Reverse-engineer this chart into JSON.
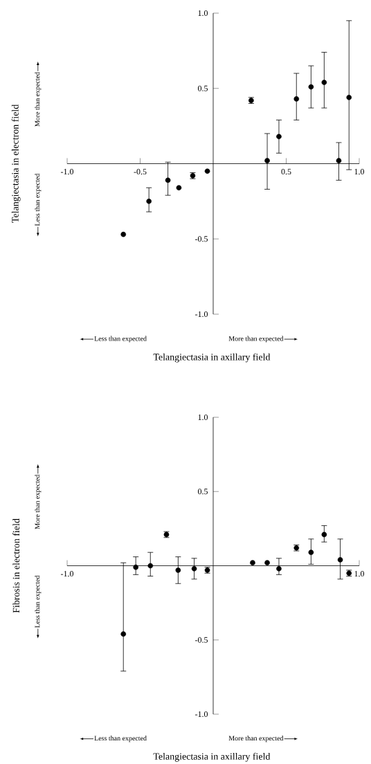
{
  "chart_data": [
    {
      "type": "scatter",
      "ylabel": "Telangiectasia in electron field",
      "xlabel": "Telangiectasia in axillary field",
      "annotations": [
        "More than expected",
        "Less than expected",
        "Less than expected",
        "More than expected"
      ],
      "xlim": [
        -1.0,
        1.0
      ],
      "ylim": [
        -1.0,
        1.0
      ],
      "xticks": [
        {
          "value": -1.0,
          "label": "-1.0"
        },
        {
          "value": -0.5,
          "label": "-0.5"
        },
        {
          "value": 0.5,
          "label": "0.5"
        },
        {
          "value": 1.0,
          "label": "1.0"
        }
      ],
      "yticks": [
        {
          "value": 1.0,
          "label": "1.0"
        },
        {
          "value": 0.5,
          "label": "0.5"
        },
        {
          "value": -0.5,
          "label": "-0.5"
        },
        {
          "value": -1.0,
          "label": "-1.0"
        }
      ],
      "marker": "circle",
      "series": [
        {
          "color": "#000000",
          "x": [
            -0.615,
            -0.44,
            -0.31,
            -0.235,
            -0.14,
            -0.04,
            0.26,
            0.37,
            0.45,
            0.57,
            0.67,
            0.76,
            0.86,
            0.93
          ],
          "values": [
            -0.47,
            -0.25,
            -0.11,
            -0.16,
            -0.08,
            -0.05,
            0.42,
            0.02,
            0.18,
            0.43,
            0.51,
            0.54,
            0.02,
            0.44
          ],
          "errors": [
            null,
            [
              -0.32,
              -0.16
            ],
            [
              -0.21,
              0.01
            ],
            null,
            [
              -0.1,
              -0.06
            ],
            null,
            [
              0.4,
              0.44
            ],
            [
              -0.17,
              0.2
            ],
            [
              0.07,
              0.29
            ],
            [
              0.29,
              0.6
            ],
            [
              0.37,
              0.65
            ],
            [
              0.37,
              0.74
            ],
            [
              -0.11,
              0.14
            ],
            [
              -0.04,
              0.95
            ]
          ]
        }
      ]
    },
    {
      "type": "scatter",
      "ylabel": "Fibrosis in electron field",
      "xlabel": "Telangiectasia in axillary field",
      "annotations": [
        "More than expected",
        "Less than expected",
        "Less than expected",
        "More than expected"
      ],
      "xlim": [
        -1.0,
        1.0
      ],
      "ylim": [
        -1.0,
        1.0
      ],
      "xticks": [
        {
          "value": -1.0,
          "label": "-1.0"
        },
        {
          "value": 1.0,
          "label": "1.0"
        }
      ],
      "yticks": [
        {
          "value": 1.0,
          "label": "1.0"
        },
        {
          "value": 0.5,
          "label": "0.5"
        },
        {
          "value": -0.5,
          "label": "-0.5"
        },
        {
          "value": -1.0,
          "label": "-1.0"
        }
      ],
      "marker": "circle",
      "series": [
        {
          "color": "#000000",
          "x": [
            -0.615,
            -0.53,
            -0.43,
            -0.32,
            -0.24,
            -0.13,
            -0.04,
            0.27,
            0.37,
            0.45,
            0.57,
            0.67,
            0.76,
            0.87,
            0.93
          ],
          "values": [
            -0.46,
            -0.01,
            0.0,
            0.21,
            -0.03,
            -0.02,
            -0.03,
            0.02,
            0.02,
            -0.02,
            0.12,
            0.09,
            0.21,
            0.04,
            -0.05
          ],
          "errors": [
            [
              -0.71,
              0.02
            ],
            [
              -0.06,
              0.06
            ],
            [
              -0.07,
              0.09
            ],
            [
              0.19,
              0.23
            ],
            [
              -0.12,
              0.06
            ],
            [
              -0.09,
              0.05
            ],
            [
              -0.05,
              -0.01
            ],
            null,
            null,
            [
              -0.06,
              0.05
            ],
            [
              0.1,
              0.14
            ],
            [
              0.01,
              0.18
            ],
            [
              0.16,
              0.27
            ],
            [
              -0.09,
              0.18
            ],
            [
              -0.07,
              -0.03
            ]
          ]
        }
      ]
    }
  ]
}
